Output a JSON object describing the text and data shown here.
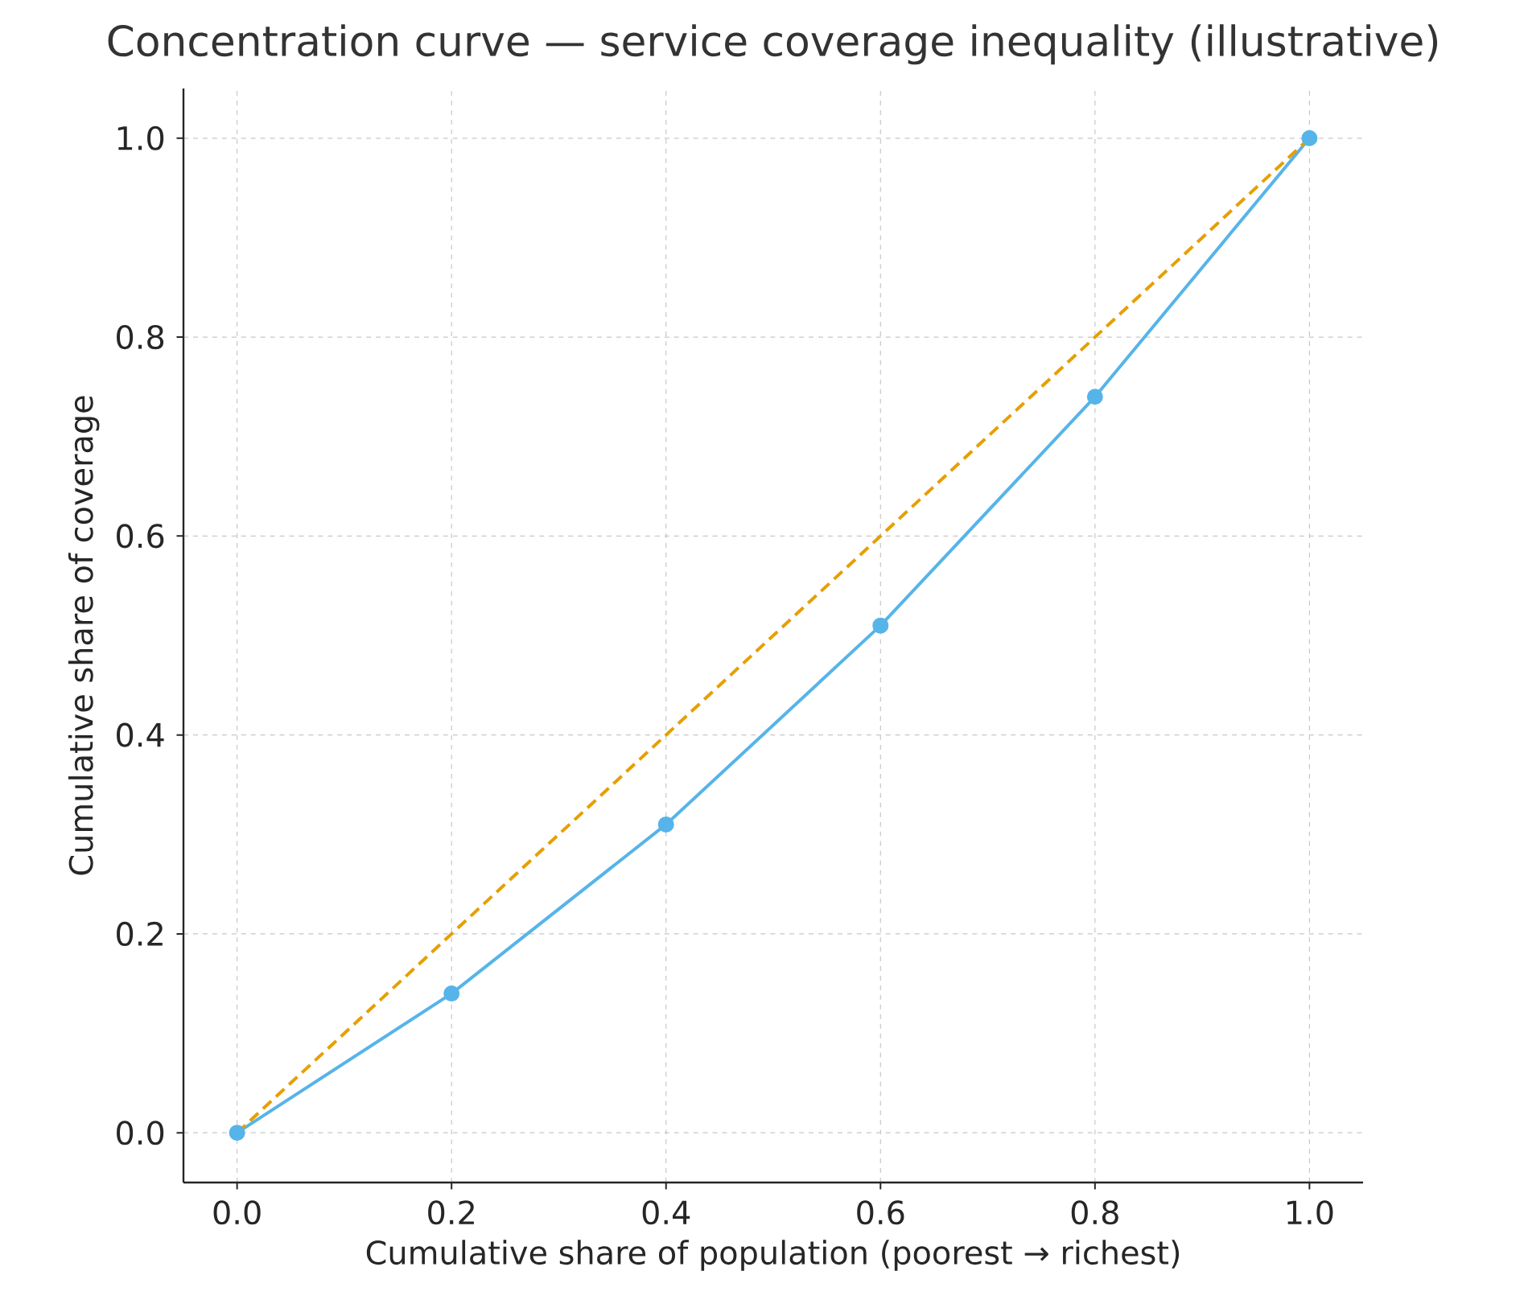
{
  "chart_data": {
    "type": "line",
    "title": "Concentration curve — service coverage inequality (illustrative)",
    "xlabel": "Cumulative share of population (poorest → richest)",
    "ylabel": "Cumulative share of coverage",
    "series": [
      {
        "color": "#56b4e9",
        "x": [
          0.0,
          0.2,
          0.4,
          0.6,
          0.8,
          1.0
        ],
        "values": [
          0.0,
          0.14,
          0.31,
          0.51,
          0.74,
          1.0
        ],
        "marker": "circle",
        "line_style": "solid"
      },
      {
        "color": "#e69f00",
        "x": [
          0.0,
          1.0
        ],
        "values": [
          0.0,
          1.0
        ],
        "marker": "none",
        "line_style": "dashed"
      }
    ],
    "xlim": [
      -0.05,
      1.05
    ],
    "ylim": [
      -0.05,
      1.05
    ],
    "xticks": [
      {
        "value": 0.0,
        "label": "0.0"
      },
      0.2,
      0.4,
      0.6,
      0.8,
      {
        "value": 1.0,
        "label": "1.0"
      }
    ],
    "yticks": [
      {
        "value": 0.0,
        "label": "0.0"
      },
      0.2,
      0.4,
      0.6,
      0.8,
      {
        "value": 1.0,
        "label": "1.0"
      }
    ],
    "grid": true
  }
}
